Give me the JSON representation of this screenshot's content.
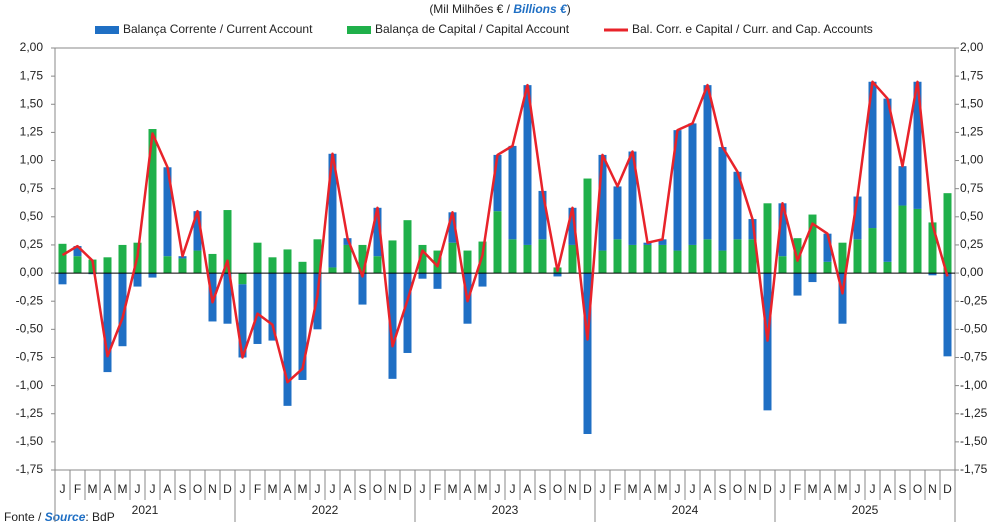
{
  "chart_data": {
    "type": "bar",
    "title": [
      "(Mil Milhões € / ",
      "Billions €",
      ")"
    ],
    "source": [
      "Fonte / ",
      "Source",
      ": BdP"
    ],
    "categories": [
      "J",
      "F",
      "M",
      "A",
      "M",
      "J",
      "J",
      "A",
      "S",
      "O",
      "N",
      "D",
      "J",
      "F",
      "M",
      "A",
      "M",
      "J",
      "J",
      "A",
      "S",
      "O",
      "N",
      "D",
      "J",
      "F",
      "M",
      "A",
      "M",
      "J",
      "J",
      "A",
      "S",
      "O",
      "N",
      "D",
      "J",
      "F",
      "M",
      "A",
      "M",
      "J",
      "J",
      "A",
      "S",
      "O",
      "N",
      "D",
      "J",
      "F",
      "M",
      "A",
      "M",
      "J",
      "J",
      "A",
      "S",
      "O",
      "N",
      "D"
    ],
    "years": [
      "2021",
      "2022",
      "2023",
      "2024",
      "2025"
    ],
    "series": [
      {
        "name": "Balança Corrente / Current Account",
        "color": "#1f6fc4",
        "type": "bar",
        "values": [
          -0.1,
          0.09,
          -0.01,
          -0.88,
          -0.65,
          -0.12,
          -0.04,
          0.79,
          0.02,
          0.35,
          -0.43,
          -0.45,
          -0.65,
          -0.63,
          -0.6,
          -1.18,
          -0.95,
          -0.5,
          1.01,
          0.06,
          -0.28,
          0.43,
          -0.94,
          -0.71,
          -0.05,
          -0.14,
          0.27,
          -0.45,
          -0.12,
          0.5,
          0.83,
          1.42,
          0.43,
          -0.03,
          0.33,
          -1.43,
          0.85,
          0.47,
          0.83,
          0.02,
          0.05,
          1.07,
          1.08,
          1.37,
          0.92,
          0.6,
          0.18,
          -1.22,
          0.47,
          -0.2,
          -0.08,
          0.25,
          -0.45,
          0.38,
          1.3,
          1.45,
          0.35,
          1.13,
          -0.02,
          -0.74
        ]
      },
      {
        "name": "Balança de Capital / Capital Account",
        "color": "#1fb04a",
        "type": "bar",
        "values": [
          0.26,
          0.15,
          0.12,
          0.14,
          0.25,
          0.27,
          1.28,
          0.15,
          0.13,
          0.2,
          0.17,
          0.56,
          -0.1,
          0.27,
          0.14,
          0.21,
          0.1,
          0.3,
          0.05,
          0.25,
          0.25,
          0.15,
          0.29,
          0.47,
          0.25,
          0.2,
          0.27,
          0.2,
          0.28,
          0.55,
          0.3,
          0.25,
          0.3,
          0.05,
          0.25,
          0.84,
          0.2,
          0.3,
          0.25,
          0.25,
          0.25,
          0.2,
          0.25,
          0.3,
          0.2,
          0.3,
          0.3,
          0.62,
          0.15,
          0.31,
          0.52,
          0.1,
          0.27,
          0.3,
          0.4,
          0.1,
          0.6,
          0.57,
          0.45,
          0.71
        ]
      },
      {
        "name": "Bal. Corr. e Capital / Curr. and Cap. Accounts",
        "color": "#e8232a",
        "type": "line",
        "values": [
          0.16,
          0.24,
          0.11,
          -0.74,
          -0.4,
          0.15,
          1.24,
          0.94,
          0.15,
          0.55,
          -0.26,
          0.11,
          -0.75,
          -0.36,
          -0.46,
          -0.97,
          -0.85,
          -0.2,
          1.06,
          0.31,
          -0.03,
          0.58,
          -0.65,
          -0.24,
          0.2,
          0.06,
          0.54,
          -0.25,
          0.16,
          1.05,
          1.13,
          1.67,
          0.73,
          0.02,
          0.58,
          -0.59,
          1.05,
          0.77,
          1.08,
          0.27,
          0.3,
          1.27,
          1.33,
          1.67,
          1.12,
          0.9,
          0.48,
          -0.6,
          0.62,
          0.11,
          0.44,
          0.35,
          -0.18,
          0.68,
          1.7,
          1.55,
          0.95,
          1.7,
          0.43,
          -0.03
        ]
      }
    ],
    "ylim": [
      -1.75,
      2.0
    ],
    "yticks": [
      {
        "value": 2,
        "label": "2,00"
      },
      {
        "value": 1.75,
        "label": "1,75"
      },
      {
        "value": 1.5,
        "label": "1,50"
      },
      {
        "value": 1.25,
        "label": "1,25"
      },
      {
        "value": 1,
        "label": "1,00"
      },
      {
        "value": 0.75,
        "label": "0,75"
      },
      {
        "value": 0.5,
        "label": "0,50"
      },
      {
        "value": 0.25,
        "label": "0,25"
      },
      {
        "value": 0,
        "label": "0,00"
      },
      {
        "value": -0.25,
        "label": "-0,25"
      },
      {
        "value": -0.5,
        "label": "-0,50"
      },
      {
        "value": -0.75,
        "label": "-0,75"
      },
      {
        "value": -1,
        "label": "-1,00"
      },
      {
        "value": -1.25,
        "label": "-1,25"
      },
      {
        "value": -1.5,
        "label": "-1,50"
      },
      {
        "value": -1.75,
        "label": "-1,75"
      }
    ],
    "grid": false,
    "legend": "top"
  }
}
